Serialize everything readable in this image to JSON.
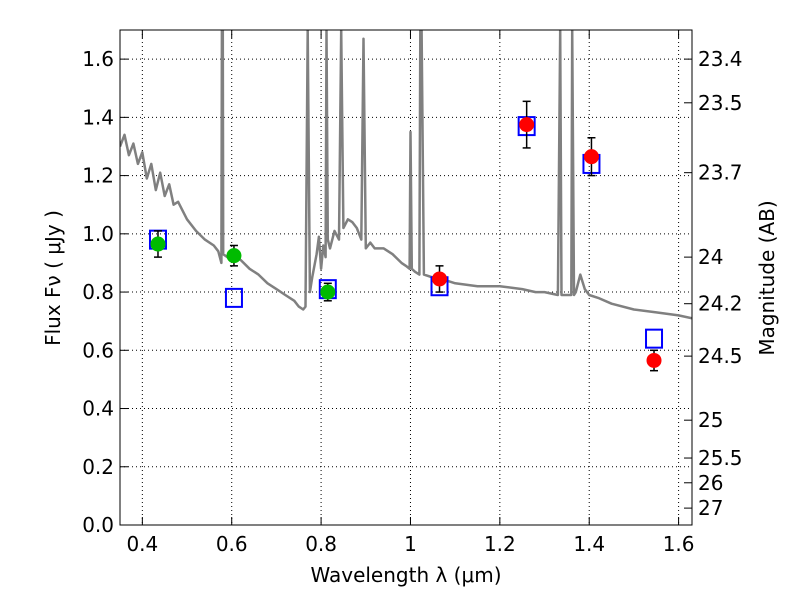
{
  "chart_data": {
    "type": "scatter",
    "xlabel": "Wavelength  λ (μm)",
    "ylabel": "Flux  Fν  ( μJy )",
    "ylabel_right": "Magnitude (AB)",
    "xlim": [
      0.35,
      1.63
    ],
    "ylim": [
      0.0,
      1.7
    ],
    "grid": true,
    "x_ticks": [
      0.4,
      0.6,
      0.8,
      1.0,
      1.2,
      1.4,
      1.6
    ],
    "x_tick_labels": [
      "0.4",
      "0.6",
      "0.8",
      "1",
      "1.2",
      "1.4",
      "1.6"
    ],
    "y_ticks": [
      0.0,
      0.2,
      0.4,
      0.6,
      0.8,
      1.0,
      1.2,
      1.4,
      1.6
    ],
    "y_tick_labels": [
      "0.0",
      "0.2",
      "0.4",
      "0.6",
      "0.8",
      "1.0",
      "1.2",
      "1.4",
      "1.6"
    ],
    "right_ticks": [
      {
        "label": "23.4",
        "flux": 1.6
      },
      {
        "label": "23.5",
        "flux": 1.45
      },
      {
        "label": "23.7",
        "flux": 1.21
      },
      {
        "label": "24",
        "flux": 0.92
      },
      {
        "label": "24.2",
        "flux": 0.76
      },
      {
        "label": "24.5",
        "flux": 0.58
      },
      {
        "label": "25",
        "flux": 0.36
      },
      {
        "label": "25.5",
        "flux": 0.23
      },
      {
        "label": "26",
        "flux": 0.145
      },
      {
        "label": "27",
        "flux": 0.058
      }
    ],
    "series": [
      {
        "kind": "line",
        "color": "#808080",
        "points": [
          [
            0.35,
            1.3
          ],
          [
            0.36,
            1.34
          ],
          [
            0.37,
            1.27
          ],
          [
            0.38,
            1.31
          ],
          [
            0.39,
            1.24
          ],
          [
            0.4,
            1.28
          ],
          [
            0.41,
            1.19
          ],
          [
            0.42,
            1.24
          ],
          [
            0.43,
            1.15
          ],
          [
            0.44,
            1.21
          ],
          [
            0.45,
            1.13
          ],
          [
            0.46,
            1.17
          ],
          [
            0.47,
            1.1
          ],
          [
            0.48,
            1.11
          ],
          [
            0.5,
            1.05
          ],
          [
            0.52,
            1.01
          ],
          [
            0.54,
            0.98
          ],
          [
            0.56,
            0.96
          ],
          [
            0.57,
            0.94
          ],
          [
            0.577,
            0.9
          ],
          [
            0.578,
            1.7
          ],
          [
            0.58,
            1.7
          ],
          [
            0.581,
            0.93
          ],
          [
            0.59,
            0.92
          ],
          [
            0.6,
            0.93
          ],
          [
            0.62,
            0.91
          ],
          [
            0.64,
            0.88
          ],
          [
            0.66,
            0.86
          ],
          [
            0.68,
            0.83
          ],
          [
            0.7,
            0.81
          ],
          [
            0.72,
            0.79
          ],
          [
            0.74,
            0.77
          ],
          [
            0.75,
            0.75
          ],
          [
            0.76,
            0.74
          ],
          [
            0.765,
            0.75
          ],
          [
            0.77,
            1.7
          ],
          [
            0.775,
            0.8
          ],
          [
            0.78,
            0.85
          ],
          [
            0.79,
            0.93
          ],
          [
            0.795,
            0.99
          ],
          [
            0.8,
            0.88
          ],
          [
            0.805,
            0.96
          ],
          [
            0.81,
            0.92
          ],
          [
            0.812,
            1.7
          ],
          [
            0.815,
            0.98
          ],
          [
            0.82,
            0.95
          ],
          [
            0.83,
            1.01
          ],
          [
            0.84,
            0.98
          ],
          [
            0.845,
            1.7
          ],
          [
            0.85,
            1.02
          ],
          [
            0.86,
            1.05
          ],
          [
            0.87,
            1.04
          ],
          [
            0.88,
            1.02
          ],
          [
            0.89,
            0.98
          ],
          [
            0.895,
            1.67
          ],
          [
            0.9,
            0.95
          ],
          [
            0.91,
            0.97
          ],
          [
            0.92,
            0.95
          ],
          [
            0.94,
            0.95
          ],
          [
            0.96,
            0.93
          ],
          [
            0.98,
            0.9
          ],
          [
            0.99,
            0.89
          ],
          [
            0.998,
            0.88
          ],
          [
            1.0,
            1.35
          ],
          [
            1.003,
            0.88
          ],
          [
            1.01,
            0.87
          ],
          [
            1.02,
            0.86
          ],
          [
            1.022,
            1.7
          ],
          [
            1.025,
            1.7
          ],
          [
            1.03,
            0.86
          ],
          [
            1.05,
            0.85
          ],
          [
            1.08,
            0.84
          ],
          [
            1.1,
            0.83
          ],
          [
            1.15,
            0.82
          ],
          [
            1.2,
            0.82
          ],
          [
            1.25,
            0.81
          ],
          [
            1.28,
            0.8
          ],
          [
            1.3,
            0.8
          ],
          [
            1.33,
            0.79
          ],
          [
            1.335,
            1.7
          ],
          [
            1.338,
            0.79
          ],
          [
            1.34,
            0.79
          ],
          [
            1.36,
            0.79
          ],
          [
            1.362,
            1.7
          ],
          [
            1.366,
            0.79
          ],
          [
            1.37,
            0.8
          ],
          [
            1.38,
            0.86
          ],
          [
            1.39,
            0.81
          ],
          [
            1.4,
            0.79
          ],
          [
            1.42,
            0.78
          ],
          [
            1.45,
            0.76
          ],
          [
            1.5,
            0.74
          ],
          [
            1.55,
            0.73
          ],
          [
            1.6,
            0.72
          ],
          [
            1.63,
            0.71
          ]
        ]
      },
      {
        "kind": "squares",
        "color": "#0000ff",
        "x": [
          0.435,
          0.605,
          0.815,
          1.065,
          1.26,
          1.405,
          1.545
        ],
        "y": [
          0.98,
          0.78,
          0.81,
          0.82,
          1.37,
          1.24,
          0.64
        ]
      },
      {
        "kind": "circles",
        "color": "#00bb00",
        "x": [
          0.435,
          0.605,
          0.815
        ],
        "y": [
          0.965,
          0.925,
          0.8
        ],
        "err": [
          0.045,
          0.035,
          0.03
        ]
      },
      {
        "kind": "circles",
        "color": "#ff0000",
        "x": [
          1.065,
          1.26,
          1.405,
          1.545
        ],
        "y": [
          0.845,
          1.375,
          1.265,
          0.565
        ],
        "err": [
          0.045,
          0.08,
          0.065,
          0.035
        ]
      }
    ]
  }
}
